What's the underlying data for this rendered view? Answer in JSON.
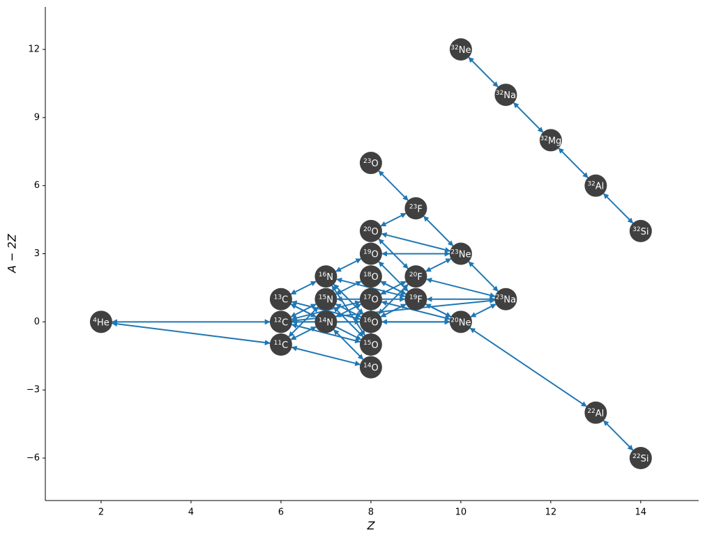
{
  "chart_data": {
    "type": "network",
    "xlabel": "Z",
    "ylabel": "A − 2Z",
    "xlim": [
      0.76,
      15.29
    ],
    "ylim": [
      -7.87,
      13.87
    ],
    "xticks": [
      2,
      4,
      6,
      8,
      10,
      12,
      14
    ],
    "yticks": [
      {
        "value": -6,
        "label": "−6"
      },
      {
        "value": -3,
        "label": "−3"
      },
      0,
      3,
      6,
      9,
      12
    ],
    "node_color": "#404040",
    "edge_color": "#1f77b4",
    "nodes": [
      {
        "mass": 4,
        "symbol": "He",
        "x": 2,
        "y": 0
      },
      {
        "mass": 11,
        "symbol": "C",
        "x": 6,
        "y": -1
      },
      {
        "mass": 12,
        "symbol": "C",
        "x": 6,
        "y": 0
      },
      {
        "mass": 13,
        "symbol": "C",
        "x": 6,
        "y": 1
      },
      {
        "mass": 14,
        "symbol": "N",
        "x": 7,
        "y": 0
      },
      {
        "mass": 15,
        "symbol": "N",
        "x": 7,
        "y": 1
      },
      {
        "mass": 16,
        "symbol": "N",
        "x": 7,
        "y": 2
      },
      {
        "mass": 14,
        "symbol": "O",
        "x": 8,
        "y": -2
      },
      {
        "mass": 15,
        "symbol": "O",
        "x": 8,
        "y": -1
      },
      {
        "mass": 16,
        "symbol": "O",
        "x": 8,
        "y": 0
      },
      {
        "mass": 17,
        "symbol": "O",
        "x": 8,
        "y": 1
      },
      {
        "mass": 18,
        "symbol": "O",
        "x": 8,
        "y": 2
      },
      {
        "mass": 19,
        "symbol": "O",
        "x": 8,
        "y": 3
      },
      {
        "mass": 20,
        "symbol": "O",
        "x": 8,
        "y": 4
      },
      {
        "mass": 23,
        "symbol": "O",
        "x": 8,
        "y": 7
      },
      {
        "mass": 19,
        "symbol": "F",
        "x": 9,
        "y": 1
      },
      {
        "mass": 20,
        "symbol": "F",
        "x": 9,
        "y": 2
      },
      {
        "mass": 23,
        "symbol": "F",
        "x": 9,
        "y": 5
      },
      {
        "mass": 20,
        "symbol": "Ne",
        "x": 10,
        "y": 0
      },
      {
        "mass": 23,
        "symbol": "Ne",
        "x": 10,
        "y": 3
      },
      {
        "mass": 32,
        "symbol": "Ne",
        "x": 10,
        "y": 12
      },
      {
        "mass": 23,
        "symbol": "Na",
        "x": 11,
        "y": 1
      },
      {
        "mass": 32,
        "symbol": "Na",
        "x": 11,
        "y": 10
      },
      {
        "mass": 32,
        "symbol": "Mg",
        "x": 12,
        "y": 8
      },
      {
        "mass": 22,
        "symbol": "Al",
        "x": 13,
        "y": -4
      },
      {
        "mass": 32,
        "symbol": "Al",
        "x": 13,
        "y": 6
      },
      {
        "mass": 22,
        "symbol": "Si",
        "x": 14,
        "y": -6
      },
      {
        "mass": 32,
        "symbol": "Si",
        "x": 14,
        "y": 4
      }
    ],
    "edges": [
      [
        0,
        2
      ],
      [
        0,
        1
      ],
      [
        20,
        22
      ],
      [
        22,
        23
      ],
      [
        23,
        25
      ],
      [
        25,
        27
      ],
      [
        14,
        17
      ],
      [
        17,
        13
      ],
      [
        17,
        19
      ],
      [
        13,
        19
      ],
      [
        13,
        16
      ],
      [
        12,
        19
      ],
      [
        12,
        15
      ],
      [
        12,
        6
      ],
      [
        19,
        16
      ],
      [
        19,
        21
      ],
      [
        16,
        21
      ],
      [
        16,
        10
      ],
      [
        16,
        9
      ],
      [
        11,
        18
      ],
      [
        15,
        21
      ],
      [
        15,
        9
      ],
      [
        15,
        5
      ],
      [
        15,
        6
      ],
      [
        15,
        18
      ],
      [
        21,
        18
      ],
      [
        21,
        2
      ],
      [
        18,
        9
      ],
      [
        18,
        24
      ],
      [
        24,
        26
      ],
      [
        2,
        18
      ],
      [
        18,
        10
      ],
      [
        6,
        3
      ],
      [
        6,
        9
      ],
      [
        6,
        8
      ],
      [
        5,
        2
      ],
      [
        5,
        9
      ],
      [
        5,
        8
      ],
      [
        5,
        11
      ],
      [
        4,
        1
      ],
      [
        4,
        7
      ],
      [
        4,
        10
      ],
      [
        3,
        9
      ],
      [
        3,
        8
      ],
      [
        2,
        9
      ],
      [
        2,
        8
      ],
      [
        1,
        7
      ],
      [
        1,
        5
      ],
      [
        11,
        15
      ],
      [
        10,
        2
      ],
      [
        8,
        11
      ],
      [
        4,
        3
      ]
    ]
  }
}
